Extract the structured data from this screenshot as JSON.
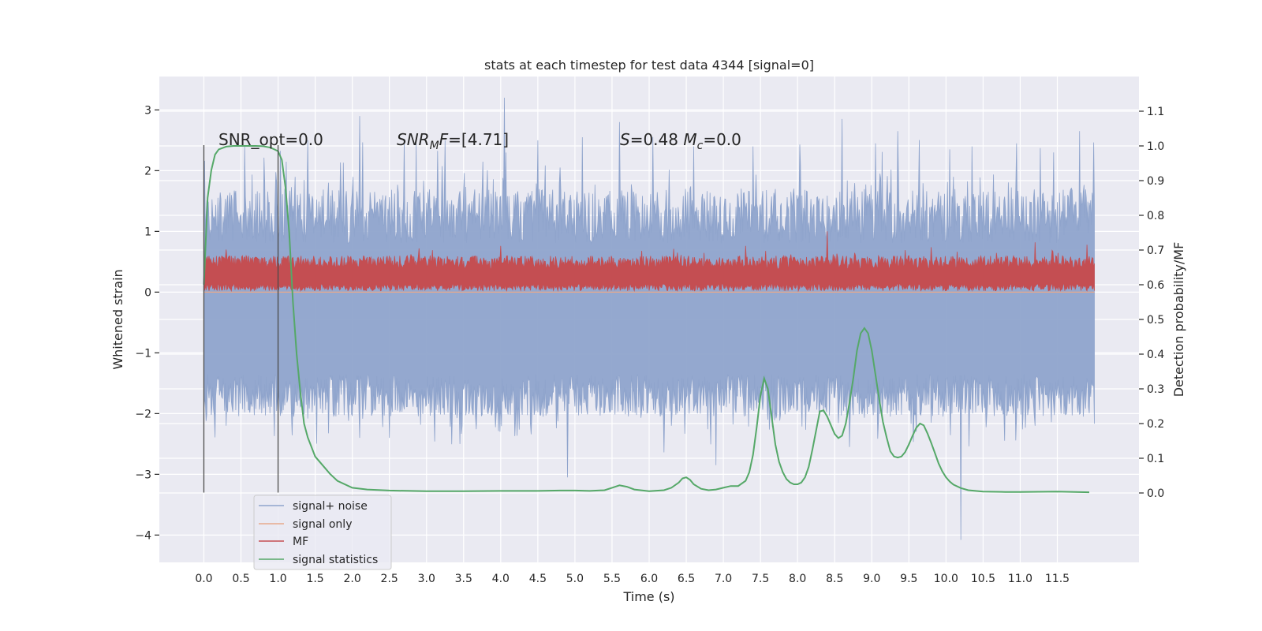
{
  "chart_data": {
    "type": "line",
    "title": "stats at each timestep for test data 4344 [signal=0]",
    "xlabel": "Time (s)",
    "ylabel": "Whitened strain",
    "ylabel_right": "Detection probability/MF",
    "xlim": [
      -0.6,
      12.6
    ],
    "ylim": [
      -4.45,
      3.55
    ],
    "ylim_right": [
      -0.2,
      1.2
    ],
    "x_ticks": [
      0.0,
      0.5,
      1.0,
      1.5,
      2.0,
      2.5,
      3.0,
      3.5,
      4.0,
      4.5,
      5.0,
      5.5,
      6.0,
      6.5,
      7.0,
      7.5,
      8.0,
      8.5,
      9.0,
      9.5,
      10.0,
      10.5,
      11.0,
      11.5
    ],
    "x_tick_labels": [
      "0.0",
      "0.5",
      "1.0",
      "1.5",
      "2.0",
      "2.5",
      "3.0",
      "3.5",
      "4.0",
      "4.5",
      "5.0",
      "5.5",
      "6.0",
      "6.5",
      "7.0",
      "7.5",
      "8.0",
      "8.5",
      "9.0",
      "9.5",
      "10.0",
      "10.5",
      "11.0",
      "11.5"
    ],
    "y_ticks": [
      3,
      2,
      1,
      0,
      -1,
      -2,
      -3,
      -4
    ],
    "y_tick_labels": [
      "3",
      "2",
      "1",
      "0",
      "−1",
      "−2",
      "−3",
      "−4"
    ],
    "y_right_ticks": [
      1.1,
      1.0,
      0.9,
      0.8,
      0.7,
      0.6,
      0.5,
      0.4,
      0.3,
      0.2,
      0.1,
      0.0
    ],
    "y_right_tick_labels": [
      "1.1",
      "1.0",
      "0.9",
      "0.8",
      "0.7",
      "0.6",
      "0.5",
      "0.4",
      "0.3",
      "0.2",
      "0.1",
      "0.0"
    ],
    "annotations": [
      {
        "text": "SNR_opt=0.0",
        "x": 0.2,
        "y": 2.45
      },
      {
        "text": "SNR_M F=[4.71]",
        "x": 2.6,
        "y": 2.45
      },
      {
        "text": "S=0.48  M_c=0.0",
        "x": 5.6,
        "y": 2.45
      }
    ],
    "vlines": [
      {
        "x": 0.0,
        "y0": -3.3,
        "y1": 2.42
      },
      {
        "x": 1.0,
        "y0": -3.3,
        "y1": 2.42
      }
    ],
    "grid": true,
    "legend_position": "lower-left",
    "series": [
      {
        "name": "signal+ noise",
        "axis": "left",
        "color": "#8fa4cc",
        "description_x_range": [
          0.0,
          12.0
        ],
        "envelope_upper": 1.3,
        "envelope_lower": -1.7,
        "spike_max": [
          [
            0.55,
            2.4
          ],
          [
            1.4,
            2.5
          ],
          [
            2.1,
            2.9
          ],
          [
            2.7,
            2.5
          ],
          [
            3.25,
            2.5
          ],
          [
            4.05,
            3.2
          ],
          [
            4.5,
            2.5
          ],
          [
            5.1,
            2.55
          ],
          [
            5.6,
            2.8
          ],
          [
            6.05,
            2.55
          ],
          [
            6.6,
            2.4
          ],
          [
            7.4,
            2.4
          ],
          [
            8.6,
            2.85
          ],
          [
            9.05,
            2.45
          ],
          [
            9.35,
            2.65
          ],
          [
            10.05,
            2.35
          ],
          [
            10.35,
            2.4
          ],
          [
            10.95,
            2.45
          ],
          [
            11.45,
            2.3
          ],
          [
            11.8,
            2.65
          ]
        ],
        "spike_min": [
          [
            0.3,
            -2.2
          ],
          [
            1.0,
            -2.0
          ],
          [
            2.1,
            -2.4
          ],
          [
            2.5,
            -2.4
          ],
          [
            3.45,
            -2.5
          ],
          [
            4.2,
            -2.1
          ],
          [
            4.9,
            -3.05
          ],
          [
            6.3,
            -2.2
          ],
          [
            6.9,
            -2.85
          ],
          [
            7.6,
            -2.1
          ],
          [
            8.7,
            -2.55
          ],
          [
            9.6,
            -2.3
          ],
          [
            10.2,
            -4.08
          ],
          [
            11.2,
            -2.2
          ],
          [
            11.85,
            -2.05
          ]
        ]
      },
      {
        "name": "signal only",
        "axis": "left",
        "color": "#e8a98c",
        "values_flat": 0.0
      },
      {
        "name": "MF",
        "axis": "left",
        "color": "#c44e52",
        "envelope_upper": 0.6,
        "envelope_lower": 0.02,
        "spike_max": [
          [
            0.3,
            0.7
          ],
          [
            2.9,
            0.72
          ],
          [
            4.0,
            0.76
          ],
          [
            5.9,
            0.68
          ],
          [
            7.3,
            0.76
          ],
          [
            8.4,
            1.0
          ],
          [
            9.8,
            0.74
          ],
          [
            11.2,
            0.82
          ],
          [
            11.9,
            0.78
          ]
        ]
      },
      {
        "name": "signal statistics",
        "axis": "right",
        "color": "#55a868",
        "x": [
          0.0,
          0.05,
          0.1,
          0.15,
          0.2,
          0.3,
          0.4,
          0.5,
          0.6,
          0.7,
          0.8,
          0.9,
          0.95,
          1.0,
          1.05,
          1.1,
          1.15,
          1.2,
          1.25,
          1.3,
          1.35,
          1.4,
          1.5,
          1.6,
          1.7,
          1.8,
          2.0,
          2.2,
          2.5,
          3.0,
          3.5,
          4.0,
          4.5,
          4.8,
          5.0,
          5.2,
          5.4,
          5.5,
          5.6,
          5.7,
          5.8,
          6.0,
          6.2,
          6.3,
          6.4,
          6.45,
          6.5,
          6.55,
          6.6,
          6.7,
          6.8,
          6.9,
          7.0,
          7.1,
          7.2,
          7.3,
          7.35,
          7.4,
          7.45,
          7.5,
          7.55,
          7.6,
          7.65,
          7.7,
          7.75,
          7.8,
          7.85,
          7.9,
          7.95,
          8.0,
          8.05,
          8.1,
          8.15,
          8.2,
          8.25,
          8.3,
          8.35,
          8.4,
          8.45,
          8.5,
          8.55,
          8.6,
          8.65,
          8.7,
          8.75,
          8.8,
          8.85,
          8.9,
          8.95,
          9.0,
          9.05,
          9.1,
          9.15,
          9.2,
          9.25,
          9.3,
          9.35,
          9.4,
          9.45,
          9.5,
          9.55,
          9.6,
          9.65,
          9.7,
          9.75,
          9.8,
          9.85,
          9.9,
          9.95,
          10.0,
          10.05,
          10.1,
          10.2,
          10.3,
          10.5,
          10.8,
          11.0,
          11.5,
          11.93
        ],
        "values": [
          0.6,
          0.85,
          0.93,
          0.975,
          0.99,
          0.998,
          1.0,
          1.0,
          1.0,
          1.0,
          0.999,
          0.995,
          0.99,
          0.985,
          0.96,
          0.88,
          0.75,
          0.55,
          0.4,
          0.29,
          0.2,
          0.16,
          0.105,
          0.08,
          0.055,
          0.035,
          0.015,
          0.01,
          0.007,
          0.005,
          0.005,
          0.006,
          0.006,
          0.007,
          0.007,
          0.006,
          0.008,
          0.015,
          0.022,
          0.018,
          0.01,
          0.005,
          0.008,
          0.015,
          0.03,
          0.042,
          0.045,
          0.038,
          0.025,
          0.012,
          0.008,
          0.01,
          0.015,
          0.02,
          0.02,
          0.035,
          0.06,
          0.11,
          0.19,
          0.28,
          0.33,
          0.3,
          0.22,
          0.14,
          0.09,
          0.06,
          0.04,
          0.03,
          0.025,
          0.025,
          0.03,
          0.045,
          0.075,
          0.125,
          0.18,
          0.235,
          0.238,
          0.22,
          0.195,
          0.17,
          0.158,
          0.165,
          0.2,
          0.26,
          0.33,
          0.41,
          0.46,
          0.475,
          0.46,
          0.41,
          0.34,
          0.27,
          0.205,
          0.16,
          0.12,
          0.105,
          0.102,
          0.105,
          0.118,
          0.14,
          0.165,
          0.188,
          0.2,
          0.195,
          0.172,
          0.145,
          0.115,
          0.085,
          0.062,
          0.045,
          0.033,
          0.024,
          0.014,
          0.008,
          0.004,
          0.003,
          0.003,
          0.004,
          0.002
        ]
      }
    ]
  }
}
